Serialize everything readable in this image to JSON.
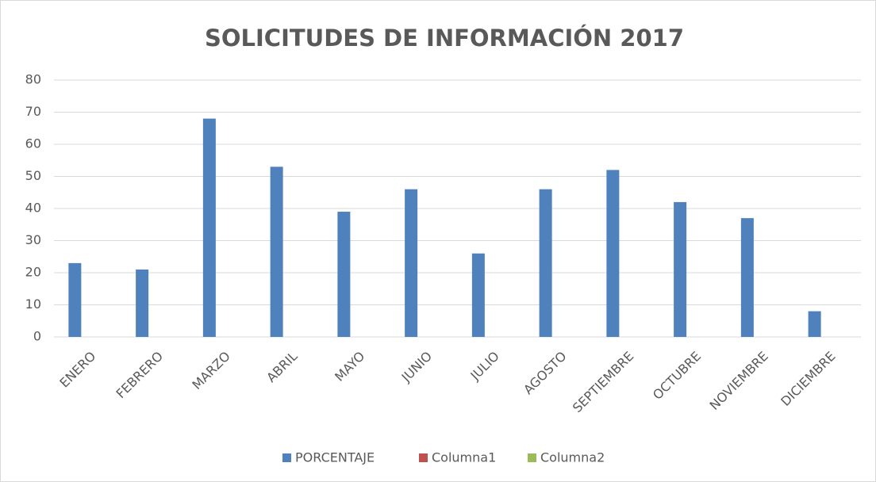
{
  "chart_data": {
    "type": "bar",
    "title": "SOLICITUDES DE INFORMACIÓN 2017",
    "categories": [
      "ENERO",
      "FEBRERO",
      "MARZO",
      "ABRIL",
      "MAYO",
      "JUNIO",
      "JULIO",
      "AGOSTO",
      "SEPTIEMBRE",
      "OCTUBRE",
      "NOVIEMBRE",
      "DICIEMBRE"
    ],
    "series": [
      {
        "name": "PORCENTAJE",
        "color": "#4f81bd",
        "values": [
          23,
          21,
          68,
          53,
          39,
          46,
          26,
          46,
          52,
          42,
          37,
          8
        ]
      },
      {
        "name": "Columna1",
        "color": "#c0504d",
        "values": [
          null,
          null,
          null,
          null,
          null,
          null,
          null,
          null,
          null,
          null,
          null,
          null
        ]
      },
      {
        "name": "Columna2",
        "color": "#9bbb59",
        "values": [
          null,
          null,
          null,
          null,
          null,
          null,
          null,
          null,
          null,
          null,
          null,
          null
        ]
      }
    ],
    "ylim": [
      0,
      80
    ],
    "yticks": [
      0,
      10,
      20,
      30,
      40,
      50,
      60,
      70,
      80
    ],
    "grid": true,
    "legend": "bottom"
  }
}
